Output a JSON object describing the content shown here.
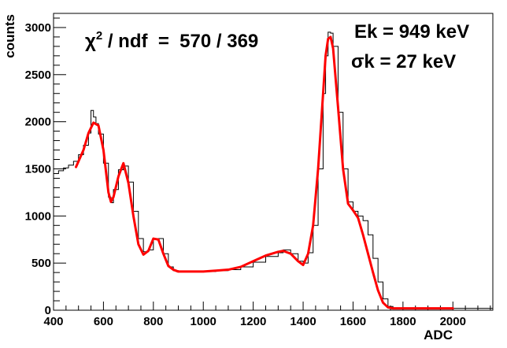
{
  "chart_data": {
    "type": "line",
    "xlabel": "ADC",
    "ylabel": "counts",
    "xlim": [
      400,
      2160
    ],
    "ylim": [
      0,
      3150
    ],
    "x_ticks": [
      "400",
      "600",
      "800",
      "1000",
      "1200",
      "1400",
      "1600",
      "1800",
      "2000"
    ],
    "y_ticks": [
      "0",
      "500",
      "1000",
      "1500",
      "2000",
      "2500",
      "3000"
    ],
    "grid": false,
    "legend": "none",
    "annotations": {
      "chi2_symbol": "χ",
      "chi2_sup": "2",
      "chi2_rest": " / ndf  =  570 / 369",
      "energy": "Ek = 949 keV",
      "sigma_symbol": "σ",
      "sigma_rest": "k = 27 keV"
    },
    "series": [
      {
        "style": "histogram",
        "color": "#000000",
        "x": [
          400,
          420,
          440,
          460,
          480,
          500,
          520,
          540,
          550,
          560,
          570,
          580,
          600,
          620,
          630,
          640,
          660,
          680,
          700,
          720,
          740,
          760,
          780,
          800,
          820,
          840,
          860,
          880,
          900,
          950,
          1000,
          1050,
          1100,
          1150,
          1200,
          1250,
          1300,
          1320,
          1350,
          1380,
          1400,
          1420,
          1440,
          1460,
          1480,
          1490,
          1500,
          1510,
          1520,
          1540,
          1560,
          1580,
          1600,
          1620,
          1640,
          1660,
          1680,
          1700,
          1720,
          1740,
          1760,
          1780,
          1800,
          1850,
          1900,
          2000,
          2100,
          2160
        ],
        "y": [
          1450,
          1480,
          1510,
          1540,
          1580,
          1650,
          1750,
          1880,
          2120,
          2050,
          1980,
          1870,
          1560,
          1200,
          1140,
          1280,
          1490,
          1530,
          1360,
          1050,
          760,
          620,
          640,
          760,
          760,
          600,
          460,
          420,
          410,
          410,
          410,
          420,
          430,
          460,
          510,
          570,
          610,
          640,
          600,
          520,
          500,
          610,
          900,
          1500,
          2300,
          2700,
          2950,
          2940,
          2800,
          2100,
          1500,
          1150,
          1050,
          1000,
          950,
          800,
          550,
          300,
          120,
          40,
          20,
          20,
          20,
          20,
          20,
          20,
          20,
          20
        ]
      },
      {
        "style": "fit",
        "color": "#ff0000",
        "x": [
          490,
          520,
          540,
          560,
          580,
          600,
          620,
          630,
          640,
          660,
          680,
          700,
          720,
          740,
          760,
          780,
          800,
          820,
          840,
          860,
          880,
          900,
          950,
          1000,
          1050,
          1100,
          1150,
          1200,
          1250,
          1300,
          1320,
          1350,
          1380,
          1400,
          1420,
          1440,
          1460,
          1480,
          1490,
          1500,
          1510,
          1520,
          1540,
          1560,
          1580,
          1600,
          1620,
          1640,
          1660,
          1680,
          1700,
          1720,
          1740,
          1760,
          1780,
          1800,
          1850,
          1900,
          2000
        ],
        "y": [
          1520,
          1700,
          1880,
          1990,
          1960,
          1700,
          1250,
          1150,
          1200,
          1420,
          1560,
          1350,
          1000,
          700,
          590,
          630,
          760,
          750,
          600,
          470,
          430,
          410,
          410,
          410,
          420,
          430,
          460,
          520,
          580,
          620,
          630,
          600,
          520,
          480,
          600,
          900,
          1500,
          2300,
          2700,
          2880,
          2900,
          2780,
          2150,
          1500,
          1130,
          1060,
          980,
          800,
          600,
          400,
          210,
          80,
          30,
          20,
          20,
          20,
          20,
          20,
          20
        ]
      }
    ]
  }
}
